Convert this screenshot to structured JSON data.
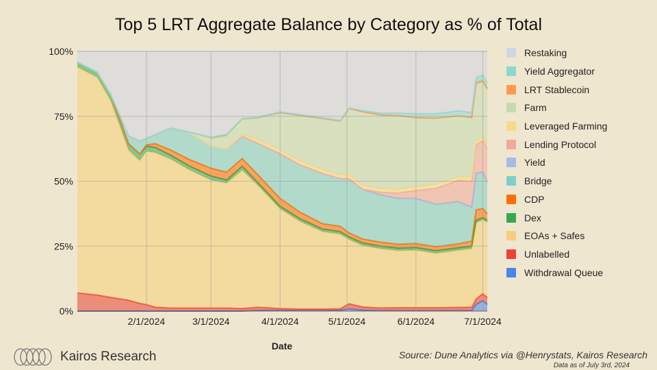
{
  "chart_data": {
    "type": "area",
    "stacked": true,
    "normalized": true,
    "title": "Top 5 LRT Aggregate Balance by Category as % of Total",
    "xlabel": "Date",
    "ylabel": "",
    "ylim": [
      0,
      100
    ],
    "y_ticks": [
      "0%",
      "25%",
      "50%",
      "75%",
      "100%"
    ],
    "x_ticks": [
      "2/1/2024",
      "3/1/2024",
      "4/1/2024",
      "5/1/2024",
      "6/1/2024",
      "7/1/2024"
    ],
    "grid": true,
    "legend_position": "right",
    "x": [
      "2024-01-01",
      "2024-01-10",
      "2024-01-16",
      "2024-01-24",
      "2024-01-29",
      "2024-02-01",
      "2024-02-05",
      "2024-02-12",
      "2024-02-20",
      "2024-03-01",
      "2024-03-08",
      "2024-03-15",
      "2024-03-22",
      "2024-04-01",
      "2024-04-10",
      "2024-04-20",
      "2024-04-28",
      "2024-05-02",
      "2024-05-08",
      "2024-05-16",
      "2024-05-24",
      "2024-06-01",
      "2024-06-10",
      "2024-06-20",
      "2024-06-26",
      "2024-06-28",
      "2024-07-01",
      "2024-07-03"
    ],
    "series": [
      {
        "name": "Withdrawal Queue",
        "color": "#4a86e8",
        "values": [
          0,
          0,
          0,
          0,
          0,
          0,
          0,
          0,
          0,
          0,
          0,
          0,
          0.3,
          0.3,
          0.2,
          0.2,
          0.3,
          0.8,
          0.4,
          0.2,
          0.2,
          0.2,
          0.2,
          0.2,
          0.2,
          2.5,
          4.0,
          2.5
        ]
      },
      {
        "name": "Unlabelled",
        "color": "#ea4335",
        "values": [
          7,
          6.2,
          5.3,
          4.2,
          3.0,
          2.5,
          1.5,
          1.2,
          1.2,
          1.2,
          1.2,
          1.0,
          1.2,
          0.7,
          0.6,
          0.6,
          0.6,
          2.0,
          1.2,
          1.0,
          1.1,
          1.1,
          1.1,
          1.2,
          1.3,
          2.2,
          2.7,
          2.7
        ]
      },
      {
        "name": "EOAs + Safes",
        "color": "#f5cf79",
        "values": [
          87,
          83.8,
          75.7,
          57.8,
          55,
          59,
          59.5,
          57.3,
          53.3,
          49.3,
          48.1,
          53.0,
          46.5,
          38,
          33.2,
          29.2,
          28.1,
          24.2,
          23.4,
          22.6,
          21.7,
          21.7,
          20.5,
          21.6,
          22.5,
          29.3,
          28.3,
          28.8
        ]
      },
      {
        "name": "Dex",
        "color": "#34a853",
        "values": [
          2,
          2,
          2.5,
          2.5,
          2.5,
          2,
          2,
          1.5,
          1.5,
          1.5,
          1.2,
          1.5,
          1,
          1,
          1,
          1,
          1,
          1,
          1,
          1,
          1,
          1,
          1,
          1,
          1,
          1,
          0.8,
          0.8
        ]
      },
      {
        "name": "CDP",
        "color": "#ff6d01",
        "values": [
          0,
          0,
          0,
          0,
          0,
          0.5,
          1.5,
          2,
          2.5,
          3,
          3,
          3,
          3,
          3,
          2.5,
          2,
          2,
          1.5,
          1.5,
          1.5,
          1.5,
          1.5,
          1.5,
          1.5,
          2,
          4,
          3.5,
          2.5
        ]
      },
      {
        "name": "Bridge",
        "color": "#7dcfc9",
        "values": [
          0,
          0,
          0,
          3,
          5,
          2.5,
          3.5,
          8.5,
          10.5,
          8.5,
          9,
          8.5,
          12,
          17,
          18,
          19,
          18,
          20.5,
          19,
          18,
          17.5,
          17,
          16,
          16,
          13,
          14,
          14,
          12
        ]
      },
      {
        "name": "Yield",
        "color": "#a7b9e4",
        "values": [
          0,
          0,
          0,
          0,
          0,
          0,
          0,
          0,
          0,
          0,
          0,
          0,
          0,
          0,
          0,
          0,
          0,
          0,
          0,
          0,
          0,
          0,
          0,
          0,
          0,
          0,
          0,
          0
        ]
      },
      {
        "name": "Lending Protocol",
        "color": "#f0a99c",
        "values": [
          0,
          0,
          0,
          0,
          0,
          0,
          0,
          0,
          0,
          0,
          0,
          0,
          0,
          0,
          0,
          0,
          0,
          0,
          0,
          1,
          2,
          3,
          6,
          8,
          10,
          11,
          12,
          13
        ]
      },
      {
        "name": "Leveraged Farming",
        "color": "#f7d98b",
        "values": [
          0,
          0,
          0,
          0,
          0,
          0,
          0,
          0,
          0,
          0,
          0,
          0.5,
          1.5,
          1.5,
          1.5,
          1.5,
          1.5,
          1.5,
          1.5,
          1.5,
          1.5,
          1.5,
          1.5,
          1.5,
          1.5,
          1.5,
          1.5,
          1.5
        ]
      },
      {
        "name": "Farm",
        "color": "#c6dab2",
        "values": [
          0,
          0,
          0,
          0,
          0,
          0,
          0,
          0,
          0,
          3,
          5,
          6,
          8,
          14,
          17,
          19,
          20,
          25,
          28,
          28,
          28,
          26,
          25,
          23,
          23,
          22,
          21,
          21
        ]
      },
      {
        "name": "LRT Stablecoin",
        "color": "#ff9a4d",
        "values": [
          0,
          0,
          0,
          0,
          0,
          0,
          0,
          0,
          0,
          0.5,
          0.5,
          0.3,
          0.3,
          0.3,
          0.3,
          0.3,
          0.3,
          0,
          0,
          0,
          0,
          0,
          0,
          0,
          0,
          0.5,
          0.5,
          0.5
        ]
      },
      {
        "name": "Yield Aggregator",
        "color": "#8fd6d0",
        "values": [
          0,
          0,
          0,
          0,
          0,
          0,
          0,
          0,
          0,
          0,
          0.1,
          0.1,
          0.1,
          0.2,
          0.2,
          0.2,
          0.2,
          0.2,
          0.5,
          0.7,
          1,
          1.5,
          1.7,
          1.9,
          2.0,
          2.0,
          2.2,
          2.2
        ]
      },
      {
        "name": "Restaking",
        "color": "#cfd6e3",
        "values": [
          4,
          8,
          16.5,
          32.5,
          34.5,
          33.5,
          32,
          29.5,
          31,
          33,
          31.9,
          25.6,
          25.1,
          23,
          24,
          25,
          26,
          21.3,
          22.5,
          23.5,
          23.5,
          23.5,
          23.5,
          22.5,
          23.5,
          10,
          9,
          12
        ]
      }
    ]
  },
  "footer": {
    "brand": "Kairos Research",
    "source": "Source: Dune Analytics via @Henrystats, Kairos Research",
    "as_of": "Data as of July 3rd, 2024"
  }
}
